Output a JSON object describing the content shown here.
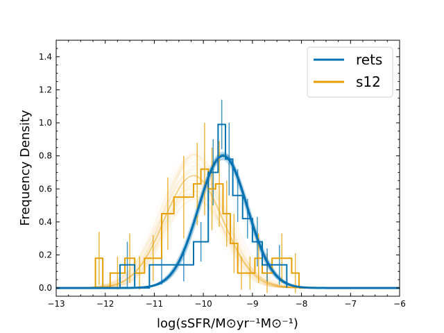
{
  "chart_data": {
    "type": "line",
    "title": "",
    "xlabel": "log(sSFR/M⊙yr⁻¹M⊙⁻¹)",
    "ylabel": "Frequency Density",
    "xlim": [
      -13,
      -6
    ],
    "ylim": [
      -0.05,
      1.5
    ],
    "xticks": [
      -13,
      -12,
      -11,
      -10,
      -9,
      -8,
      -7,
      -6
    ],
    "yticks": [
      0.0,
      0.2,
      0.4,
      0.6,
      0.8,
      1.0,
      1.2,
      1.4
    ],
    "xtick_labels": [
      "−13",
      "−12",
      "−11",
      "−10",
      "−9",
      "−8",
      "−7",
      "−6"
    ],
    "ytick_labels": [
      "0.0",
      "0.2",
      "0.4",
      "0.6",
      "0.8",
      "1.0",
      "1.2",
      "1.4"
    ],
    "grid": false,
    "legend": {
      "position": "top-right"
    },
    "series": [
      {
        "name": "rets",
        "color": "#0072B2",
        "gaussian_fit": {
          "mean": -9.6,
          "sigma": 0.5,
          "amplitude": 0.8
        },
        "histogram": {
          "edges": [
            -11.7,
            -11.4,
            -11.1,
            -10.6,
            -10.2,
            -9.9,
            -9.7,
            -9.55,
            -9.4,
            -9.2,
            -9.0,
            -8.8,
            -8.6,
            -8.3
          ],
          "values": [
            0.14,
            0.0,
            0.14,
            0.14,
            0.28,
            0.7,
            0.99,
            0.78,
            0.56,
            0.42,
            0.28,
            0.14,
            0.14
          ],
          "errors": [
            0.14,
            0.0,
            0.12,
            0.1,
            0.12,
            0.2,
            0.15,
            0.22,
            0.16,
            0.12,
            0.15,
            0.1,
            0.12
          ]
        }
      },
      {
        "name": "s12",
        "color": "#E69F00",
        "gaussian_fit": {
          "mean": -10.2,
          "sigma": 0.6,
          "amplitude": 0.68
        },
        "histogram": {
          "edges": [
            -12.2,
            -12.05,
            -11.9,
            -11.6,
            -11.4,
            -11.2,
            -10.85,
            -10.6,
            -10.2,
            -10.05,
            -9.9,
            -9.75,
            -9.6,
            -9.45,
            -9.3,
            -9.15,
            -8.95,
            -8.8,
            -8.6,
            -8.2,
            -8.05
          ],
          "values": [
            0.18,
            0.0,
            0.09,
            0.18,
            0.09,
            0.18,
            0.45,
            0.55,
            0.63,
            0.72,
            0.6,
            0.63,
            0.45,
            0.27,
            0.09,
            0.09,
            0.18,
            0.09,
            0.18,
            0.09
          ],
          "errors": [
            0.16,
            0.0,
            0.1,
            0.15,
            0.1,
            0.14,
            0.22,
            0.25,
            0.25,
            0.28,
            0.25,
            0.26,
            0.2,
            0.18,
            0.1,
            0.1,
            0.15,
            0.12,
            0.15,
            0.12
          ]
        }
      }
    ]
  }
}
